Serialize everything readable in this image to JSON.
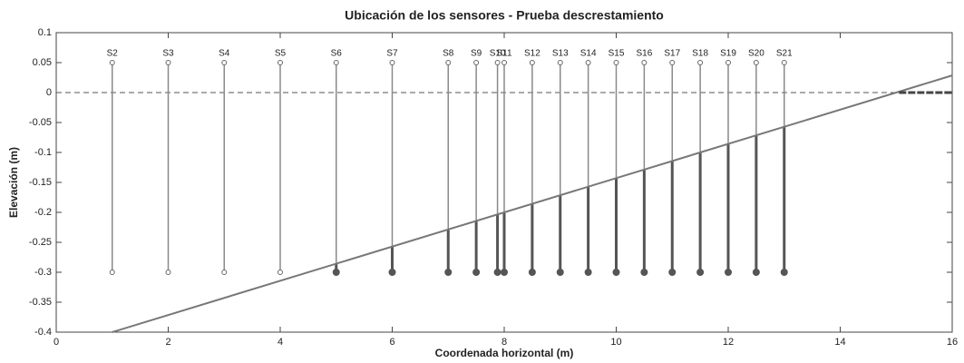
{
  "chart_data": {
    "type": "sensors",
    "title": "Ubicación de los sensores - Prueba descrestamiento",
    "xlabel": "Coordenada horizontal (m)",
    "ylabel": "Elevación (m)",
    "sensor_names": [
      "S2",
      "S3",
      "S4",
      "S5",
      "S6",
      "S7",
      "S8",
      "S9",
      "S10",
      "S11",
      "S12",
      "S13",
      "S14",
      "S15",
      "S16",
      "S17",
      "S18",
      "S19",
      "S20",
      "S21"
    ],
    "sensor_x": [
      1,
      2,
      3,
      4,
      5,
      6,
      7,
      7.5,
      7.88,
      8,
      8.5,
      9,
      9.5,
      10,
      10.5,
      11,
      11.5,
      12,
      12.5,
      13
    ],
    "sensor_top": 0.05,
    "sensor_bottom": -0.3,
    "bed": {
      "x": [
        1,
        16
      ],
      "y": [
        -0.4,
        0.0286
      ]
    },
    "shore": {
      "x": [
        15.05,
        16
      ],
      "y": [
        0,
        0
      ]
    },
    "still_water": 0,
    "xlim": [
      0,
      16
    ],
    "ylim": [
      -0.4,
      0.1
    ],
    "xticks": [
      0,
      2,
      4,
      6,
      8,
      10,
      12,
      14,
      16
    ],
    "yticks": [
      0.1,
      0.05,
      0,
      -0.05,
      -0.1,
      -0.15,
      -0.2,
      -0.25,
      -0.3,
      -0.35,
      -0.4
    ],
    "sensor_color": "#8a8a8a",
    "submerged_color": "#555555",
    "bed_color": "#777777"
  }
}
